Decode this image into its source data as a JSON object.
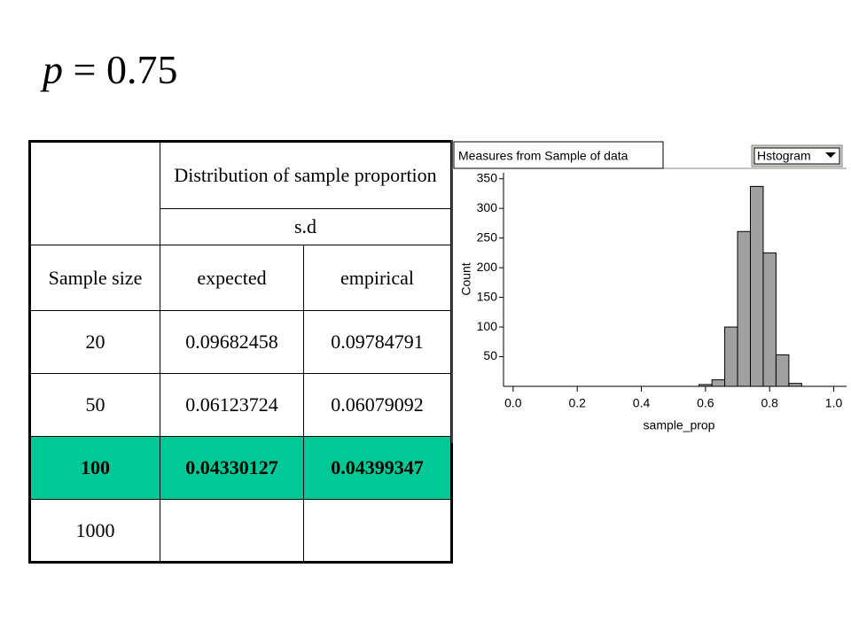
{
  "formula": {
    "lhs": "p",
    "op": "=",
    "rhs": "0.75"
  },
  "table": {
    "header": {
      "group": "Distribution of sample proportion",
      "stat": "s.d",
      "columns": [
        "Sample size",
        "expected",
        "empirical"
      ]
    },
    "rows": [
      [
        20,
        0.09682458,
        0.09784791
      ],
      [
        50,
        0.06123724,
        0.06079092
      ],
      [
        100,
        0.04330127,
        0.04399347
      ],
      [
        1000
      ]
    ],
    "highlight_row": 2,
    "highlight_color": "#00c896"
  },
  "chart_data": {
    "type": "histogram",
    "title": "Measures from Sample of data",
    "menu": "Hstogram",
    "x_label": "sample_prop",
    "y_label": "Count",
    "bins": [
      0.58,
      0.62,
      0.66,
      0.7,
      0.74,
      0.78,
      0.82,
      0.86,
      0.9
    ],
    "values": [
      3,
      11,
      100,
      261,
      337,
      225,
      53,
      5
    ],
    "color": "#a0a0a0",
    "xlim": [
      -0.03,
      1.04
    ],
    "xticks": [
      {
        "value": 0,
        "label": "0.0"
      },
      0.2,
      0.4,
      0.6,
      0.8,
      {
        "value": 1,
        "label": "1.0"
      }
    ],
    "ylim": [
      0,
      360
    ],
    "yticks": [
      50,
      100,
      150,
      200,
      250,
      300,
      350
    ]
  }
}
